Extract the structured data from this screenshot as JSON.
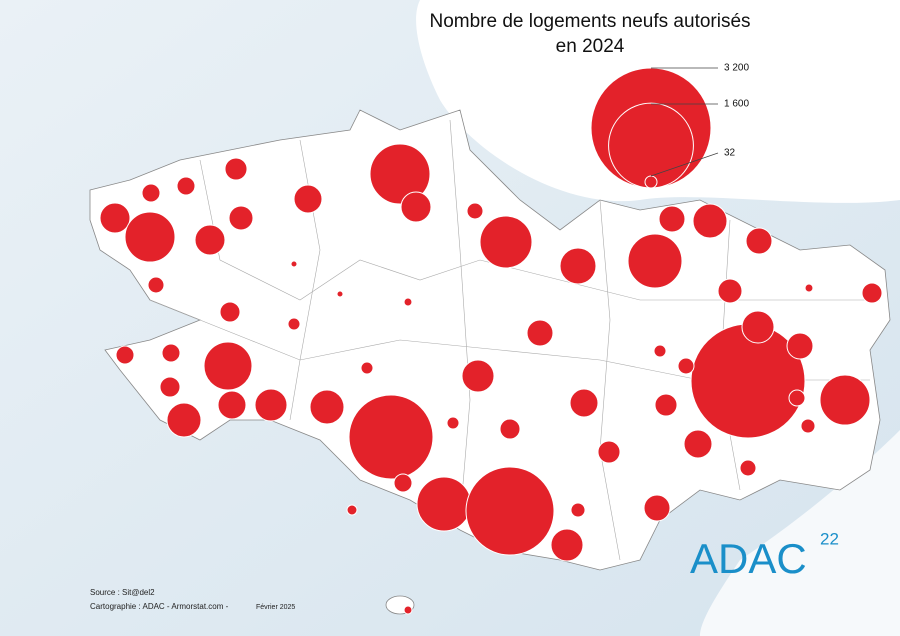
{
  "chart_data": {
    "type": "proportional-symbol-map",
    "title": [
      "Nombre de logements neufs autorisés",
      "en 2024"
    ],
    "legend_values": [
      {
        "value": 3200,
        "label": "3 200"
      },
      {
        "value": 1600,
        "label": "1 600"
      },
      32
    ],
    "color": "#e3222a",
    "values": [
      800,
      200,
      174,
      108,
      72,
      72,
      200,
      556,
      200,
      128,
      8,
      57,
      89,
      32,
      8,
      14,
      57,
      601,
      288,
      648,
      150,
      257,
      150,
      128,
      14,
      89,
      150,
      32,
      2888,
      228,
      150,
      57,
      57,
      556,
      72,
      72,
      512,
      89,
      257,
      174,
      228,
      257,
      32,
      228,
      1568,
      32,
      89,
      174,
      108,
      174,
      108,
      57,
      44,
      72,
      648,
      1721,
      228,
      44,
      150,
      22,
      14
    ]
  },
  "source": "Source : Sit@del2",
  "credits": "Cartographie : ADAC - Armorstat.com -",
  "date": "Février 2025",
  "logo": {
    "text": "ADAC",
    "number": "22"
  }
}
